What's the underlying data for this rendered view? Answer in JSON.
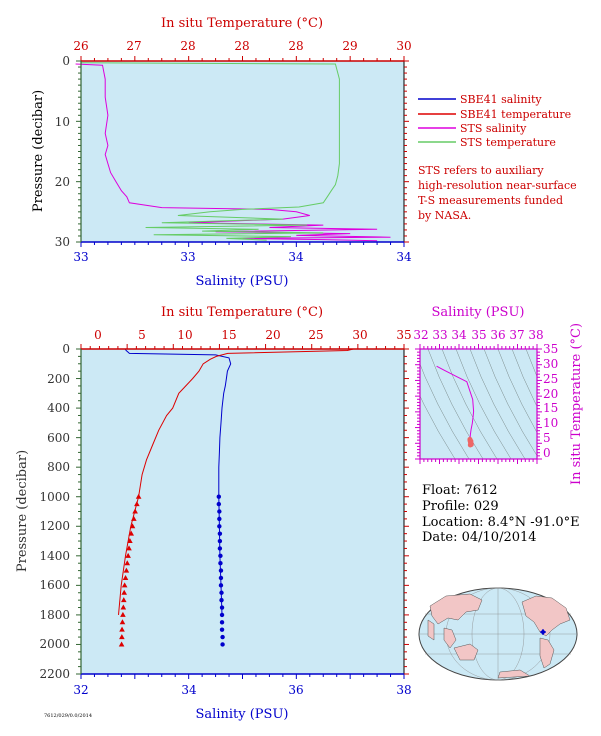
{
  "colors": {
    "plot_bg": "#cce9f5",
    "sbe_salinity": "#0000cc",
    "sbe_temperature": "#dd0000",
    "sts_salinity": "#dd00dd",
    "sts_temperature": "#66cc66",
    "red_text": "#cc0000",
    "blue_text": "#0000cc",
    "magenta_text": "#cc00cc",
    "axis_green": "#336633"
  },
  "legend": [
    {
      "label": "SBE41 salinity",
      "color": "#0000cc"
    },
    {
      "label": "SBE41 temperature",
      "color": "#dd0000"
    },
    {
      "label": "STS salinity",
      "color": "#dd00dd"
    },
    {
      "label": "STS temperature",
      "color": "#66cc66"
    }
  ],
  "note": [
    "STS refers to auxiliary",
    "high-resolution near-surface",
    "T-S measurements funded",
    "by NASA."
  ],
  "float_info": {
    "float": "Float:  7612",
    "profile": "Profile:  029",
    "location": "Location:  8.4°N  -91.0°E",
    "date": "Date:  04/10/2014"
  },
  "footer_id": "7612/029/0.0/2014",
  "chart_data": [
    {
      "type": "line",
      "name": "near-surface profile",
      "top_axis_label": "In situ Temperature (°C)",
      "top_tick_labels": [
        "26",
        "27",
        "28",
        "28",
        "28",
        "29",
        "30"
      ],
      "top_range": [
        26,
        30
      ],
      "bottom_axis_label": "Salinity (PSU)",
      "bottom_tick_labels": [
        "33",
        "33",
        "34",
        "34"
      ],
      "bottom_range": [
        32.8,
        34.0
      ],
      "ylabel": "Pressure (decibar)",
      "y_tick_labels": [
        "0",
        "10",
        "20",
        "30"
      ],
      "ylim": [
        30,
        0
      ],
      "series": [
        {
          "name": "STS salinity",
          "axis": "bottom",
          "x": [
            32.78,
            32.88,
            32.89,
            32.89,
            32.9,
            32.89,
            32.9,
            32.89,
            32.9,
            32.91,
            32.93,
            32.95,
            32.97,
            32.98,
            33.1,
            33.5,
            33.6,
            33.65,
            33.55,
            33.2,
            33.7,
            33.5,
            33.9,
            33.3,
            33.8,
            33.6,
            33.95,
            33.4,
            33.7,
            33.9
          ],
          "y": [
            0.5,
            0.7,
            3,
            6,
            9,
            12,
            14,
            15.5,
            17,
            18.5,
            20,
            21.5,
            22.5,
            23.5,
            24.3,
            24.6,
            25.0,
            25.6,
            26.2,
            26.8,
            27.2,
            27.6,
            27.9,
            28.3,
            28.6,
            28.9,
            29.2,
            29.4,
            29.6,
            29.8
          ]
        },
        {
          "name": "STS temperature",
          "axis": "top",
          "x": [
            26.0,
            29.15,
            29.2,
            29.2,
            29.2,
            29.2,
            29.2,
            29.2,
            29.18,
            29.15,
            29.1,
            29.05,
            29.0,
            28.7,
            28.0,
            27.6,
            27.2,
            28.5,
            27.0,
            28.8,
            26.8,
            28.2,
            27.5,
            29.0,
            26.9,
            28.6,
            27.8,
            28.3
          ],
          "y": [
            0.3,
            0.5,
            3,
            6,
            9,
            12,
            15,
            17,
            19,
            20.5,
            21.5,
            22.5,
            23.5,
            24.2,
            24.6,
            25.0,
            25.6,
            26.2,
            26.8,
            27.2,
            27.6,
            27.9,
            28.2,
            28.5,
            28.8,
            29.1,
            29.4,
            29.7
          ]
        }
      ]
    },
    {
      "type": "line",
      "name": "full profile",
      "top_axis_label": "In situ Temperature (°C)",
      "top_tick_labels": [
        "0",
        "5",
        "10",
        "15",
        "20",
        "25",
        "30",
        "35"
      ],
      "top_range": [
        -2,
        35
      ],
      "bottom_axis_label": "Salinity (PSU)",
      "bottom_tick_labels": [
        "32",
        "34",
        "36",
        "38"
      ],
      "bottom_range": [
        32,
        38
      ],
      "ylabel": "Pressure (decibar)",
      "y_tick_labels": [
        "0",
        "200",
        "400",
        "600",
        "800",
        "1000",
        "1200",
        "1400",
        "1600",
        "1800",
        "2000",
        "2200"
      ],
      "ylim": [
        2200,
        0
      ],
      "series": [
        {
          "name": "SBE41 salinity",
          "axis": "bottom",
          "x": [
            32.82,
            32.84,
            32.9,
            34.5,
            34.75,
            34.78,
            34.72,
            34.7,
            34.68,
            34.65,
            34.62,
            34.6,
            34.58,
            34.57,
            34.56,
            34.56,
            34.57,
            34.58,
            34.6,
            34.62
          ],
          "y": [
            0,
            10,
            30,
            40,
            60,
            100,
            150,
            200,
            250,
            300,
            400,
            500,
            600,
            700,
            800,
            1000,
            1200,
            1400,
            1600,
            1800
          ]
        },
        {
          "name": "SBE41 temperature",
          "axis": "top",
          "x": [
            29.2,
            28.5,
            14.8,
            13.5,
            12.8,
            12.0,
            11.5,
            10.8,
            10.0,
            9.2,
            8.5,
            7.8,
            6.9,
            6.2,
            5.5,
            5.0,
            4.6,
            3.7,
            3.1,
            2.6,
            2.3
          ],
          "y": [
            0,
            10,
            30,
            50,
            70,
            100,
            150,
            200,
            250,
            300,
            400,
            450,
            550,
            650,
            750,
            850,
            1000,
            1200,
            1400,
            1600,
            1800
          ]
        },
        {
          "name": "SBE41 salinity (discrete)",
          "axis": "bottom",
          "marker": "circle",
          "x": [
            34.56,
            34.56,
            34.57,
            34.57,
            34.57,
            34.58,
            34.58,
            34.58,
            34.59,
            34.59,
            34.6,
            34.6,
            34.6,
            34.61,
            34.61,
            34.62,
            34.62,
            34.62,
            34.62,
            34.63,
            34.63
          ],
          "y": [
            1000,
            1050,
            1100,
            1150,
            1200,
            1250,
            1300,
            1350,
            1400,
            1450,
            1500,
            1550,
            1600,
            1650,
            1700,
            1750,
            1800,
            1850,
            1900,
            1950,
            2000
          ]
        },
        {
          "name": "SBE41 temperature (discrete)",
          "axis": "top",
          "marker": "triangle",
          "x": [
            4.6,
            4.4,
            4.2,
            4.05,
            3.9,
            3.75,
            3.6,
            3.5,
            3.4,
            3.3,
            3.2,
            3.1,
            3.0,
            2.95,
            2.9,
            2.85,
            2.8,
            2.75,
            2.7,
            2.68,
            2.65
          ],
          "y": [
            1000,
            1050,
            1100,
            1150,
            1200,
            1250,
            1300,
            1350,
            1400,
            1450,
            1500,
            1550,
            1600,
            1650,
            1700,
            1750,
            1800,
            1850,
            1900,
            1950,
            2000
          ]
        }
      ]
    },
    {
      "type": "scatter",
      "name": "T-S diagram",
      "top_axis_label": "Salinity (PSU)",
      "top_tick_labels": [
        "32",
        "33",
        "34",
        "35",
        "36",
        "37",
        "38"
      ],
      "x_range": [
        32,
        38
      ],
      "ylabel": "In situ Temperature (°C)",
      "y_tick_labels": [
        "0",
        "5",
        "10",
        "15",
        "20",
        "25",
        "30",
        "35"
      ],
      "y_range": [
        -2,
        35
      ],
      "series": [
        {
          "name": "T-S curve",
          "x": [
            32.85,
            33.2,
            33.8,
            34.4,
            34.7,
            34.75,
            34.72,
            34.68,
            34.62,
            34.58,
            34.57,
            34.6
          ],
          "y": [
            29.2,
            28.0,
            26.0,
            24.0,
            18.0,
            14.0,
            12.0,
            10.0,
            8.0,
            6.0,
            5.0,
            3.0
          ]
        },
        {
          "name": "T-S deep cluster",
          "marker": "circle",
          "x": [
            34.56,
            34.57,
            34.58,
            34.6,
            34.62,
            34.63,
            34.58,
            34.6,
            34.61
          ],
          "y": [
            4.6,
            4.2,
            3.9,
            3.5,
            3.2,
            2.9,
            2.7,
            3.3,
            4.0
          ]
        }
      ]
    }
  ]
}
